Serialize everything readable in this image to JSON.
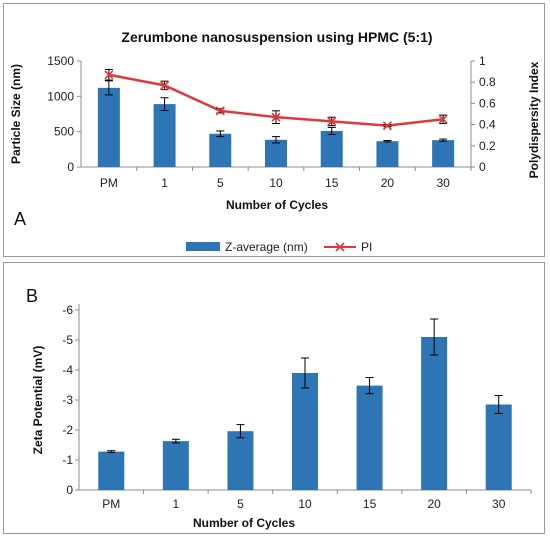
{
  "chart_data": [
    {
      "panel_label": "A",
      "type": "bar+line",
      "title": "Zerumbone nanosuspension using HPMC (5:1)",
      "xlabel": "Number of Cycles",
      "ylabel": "Particle Size (nm)",
      "y2label": "Polydispersity Index",
      "categories": [
        "PM",
        "1",
        "5",
        "10",
        "15",
        "20",
        "30"
      ],
      "ylim": [
        0,
        1500
      ],
      "yticks": [
        "0",
        "500",
        "1000",
        "1500"
      ],
      "y2lim": [
        0,
        1
      ],
      "y2ticks": [
        "0",
        "0.2",
        "0.4",
        "0.6",
        "0.8",
        "1"
      ],
      "legend_position": "bottom",
      "series": [
        {
          "name": "Z-average (nm)",
          "type": "bar",
          "axis": "left",
          "color": "#2e75b6",
          "values": [
            1120,
            890,
            470,
            385,
            510,
            365,
            380
          ],
          "errors": [
            100,
            90,
            40,
            45,
            50,
            10,
            15
          ]
        },
        {
          "name": "PI",
          "type": "line",
          "axis": "right",
          "color": "#e0383c",
          "values": [
            0.87,
            0.77,
            0.53,
            0.47,
            0.43,
            0.39,
            0.45
          ],
          "errors": [
            0.05,
            0.04,
            0.02,
            0.06,
            0.04,
            0.01,
            0.04
          ]
        }
      ]
    },
    {
      "panel_label": "B",
      "type": "bar",
      "title": "",
      "xlabel": "Number of Cycles",
      "ylabel": "Zeta Potential (mV)",
      "categories": [
        "PM",
        "1",
        "5",
        "10",
        "15",
        "20",
        "30"
      ],
      "ylim": [
        0,
        -6
      ],
      "yticks": [
        "0",
        "-1",
        "-2",
        "-3",
        "-4",
        "-5",
        "-6"
      ],
      "series": [
        {
          "name": "",
          "color": "#2e75b6",
          "values": [
            -1.28,
            -1.63,
            -1.96,
            -3.9,
            -3.48,
            -5.1,
            -2.85
          ],
          "errors": [
            0.03,
            0.06,
            0.22,
            0.5,
            0.27,
            0.6,
            0.3
          ]
        }
      ]
    }
  ]
}
